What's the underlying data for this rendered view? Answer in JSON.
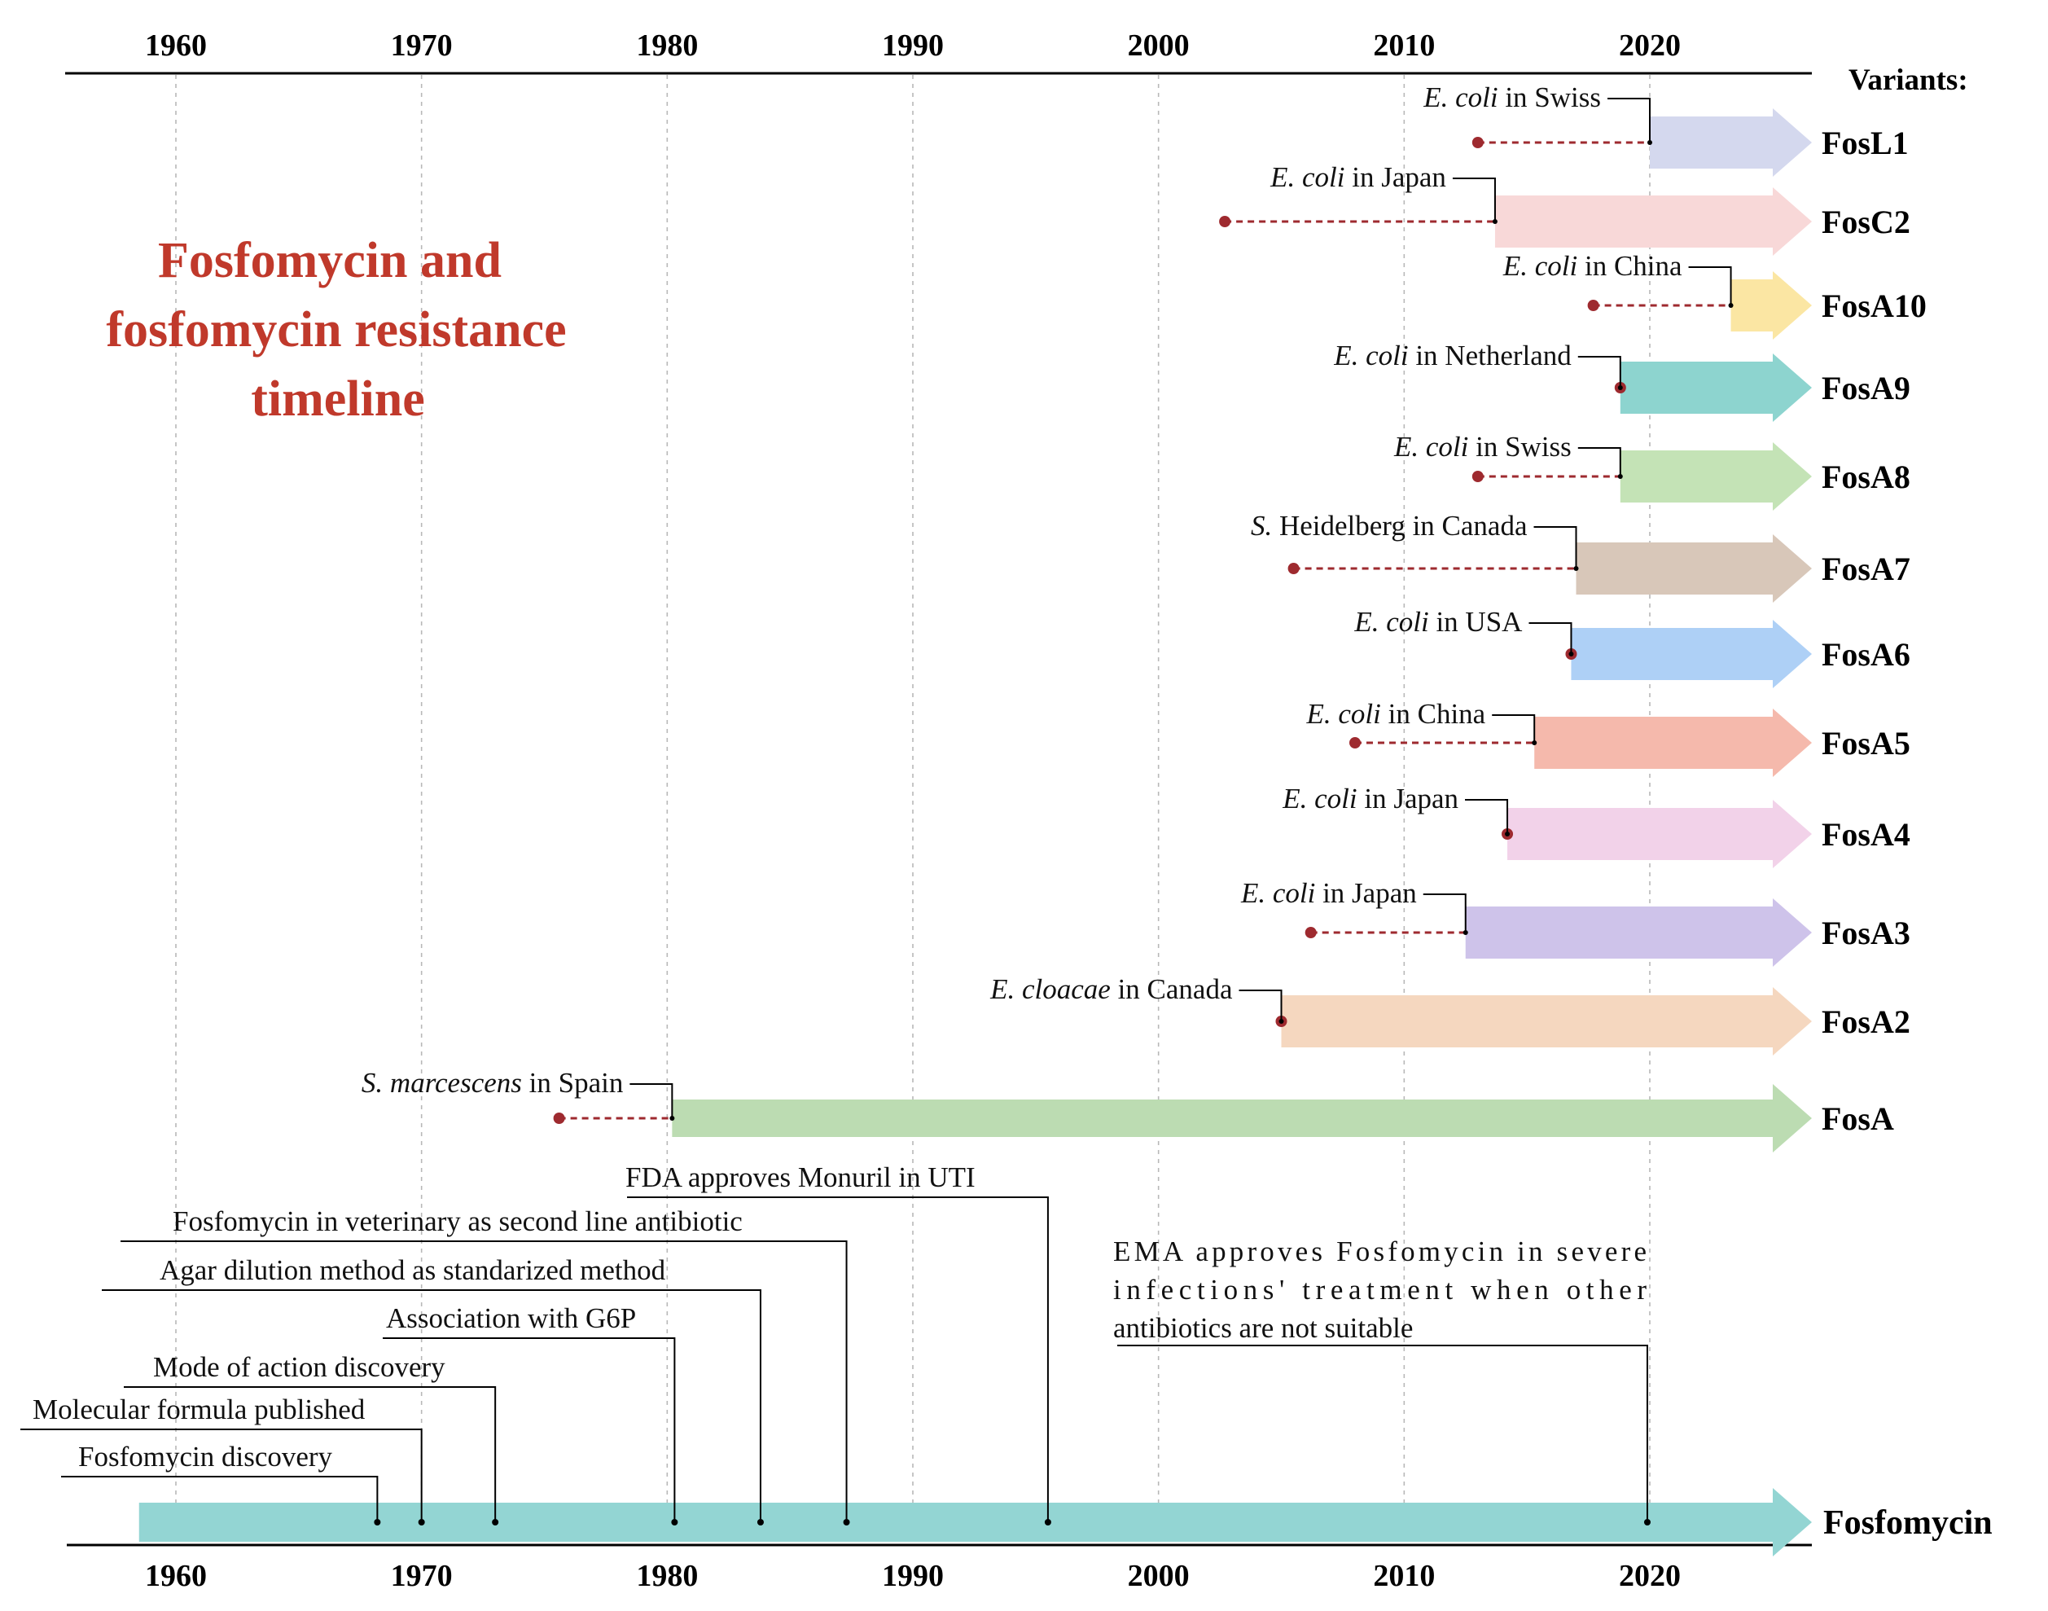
{
  "title": {
    "lines": [
      "Fosfomycin and",
      "fosfomycin resistance",
      "timeline"
    ],
    "color": "#c0392b"
  },
  "axis": {
    "years": [
      1960,
      1970,
      1980,
      1990,
      2000,
      2010,
      2020
    ],
    "range": [
      1955.5,
      2026
    ]
  },
  "variants_header": "Variants:",
  "variants": [
    {
      "name": "FosL1",
      "species": "E. coli",
      "location": "in Swiss",
      "detected": 2013,
      "reported": 2020,
      "color": "#d4d8ee"
    },
    {
      "name": "FosC2",
      "species": "E. coli",
      "location": "in Japan",
      "detected": 2002.7,
      "reported": 2013.7,
      "color": "#f8d8d8"
    },
    {
      "name": "FosA10",
      "species": "E. coli",
      "location": "in China",
      "detected": 2017.7,
      "reported": 2023.3,
      "color": "#fbe6a3"
    },
    {
      "name": "FosA9",
      "species": "E. coli",
      "location": "in Netherland",
      "detected": 2018.8,
      "reported": 2018.8,
      "color": "#8dd4cf"
    },
    {
      "name": "FosA8",
      "species": "E. coli",
      "location": "in Swiss",
      "detected": 2013,
      "reported": 2018.8,
      "color": "#c4e3b6"
    },
    {
      "name": "FosA7",
      "species": "S.",
      "location": "Heidelberg in Canada",
      "detected": 2005.5,
      "reported": 2017,
      "color": "#d8c7b9"
    },
    {
      "name": "FosA6",
      "species": "E. coli",
      "location": "in  USA",
      "detected": 2016.8,
      "reported": 2016.8,
      "color": "#aed0f6"
    },
    {
      "name": "FosA5",
      "species": "E. coli",
      "location": "in China",
      "detected": 2008,
      "reported": 2015.3,
      "color": "#f5b9ac"
    },
    {
      "name": "FosA4",
      "species": "E. coli",
      "location": "in Japan",
      "detected": 2014.2,
      "reported": 2014.2,
      "color": "#f2d2e9"
    },
    {
      "name": "FosA3",
      "species": "E. coli",
      "location": " in Japan",
      "detected": 2006.2,
      "reported": 2012.5,
      "color": "#cec3ea"
    },
    {
      "name": "FosA2",
      "species": "E. cloacae",
      "location": "in Canada",
      "detected": 2005,
      "reported": 2005,
      "color": "#f5d7bf"
    },
    {
      "name": "FosA",
      "species": "S. marcescens",
      "location": " in Spain",
      "detected": 1975.6,
      "reported": 1980.2,
      "color": "#bcdcb2"
    }
  ],
  "fosfomycin": {
    "label": "Fosfomycin",
    "start": 1958.5,
    "color": "#93d5d3",
    "events": [
      {
        "text": "Fosfomycin discovery",
        "year": 1968.2
      },
      {
        "text": "Molecular formula published",
        "year": 1970
      },
      {
        "text": "Mode of action discovery",
        "year": 1973
      },
      {
        "text": "Association with G6P",
        "year": 1980.3
      },
      {
        "text": "Agar dilution method as standarized method",
        "year": 1983.8
      },
      {
        "text": "Fosfomycin in veterinary  as second line antibiotic",
        "year": 1987.3
      },
      {
        "text": "FDA approves Monuril in UTI",
        "year": 1995.5
      },
      {
        "text": "EMA approves Fosfomycin in severe infections' treatment when other antibiotics are not suitable",
        "year": 2019.9
      }
    ]
  },
  "ema_lines": [
    "EMA   approves   Fosfomycin   in   severe",
    "infections'    treatment    when    other",
    "antibiotics are not suitable"
  ],
  "marker_color": "#9e2a2f"
}
